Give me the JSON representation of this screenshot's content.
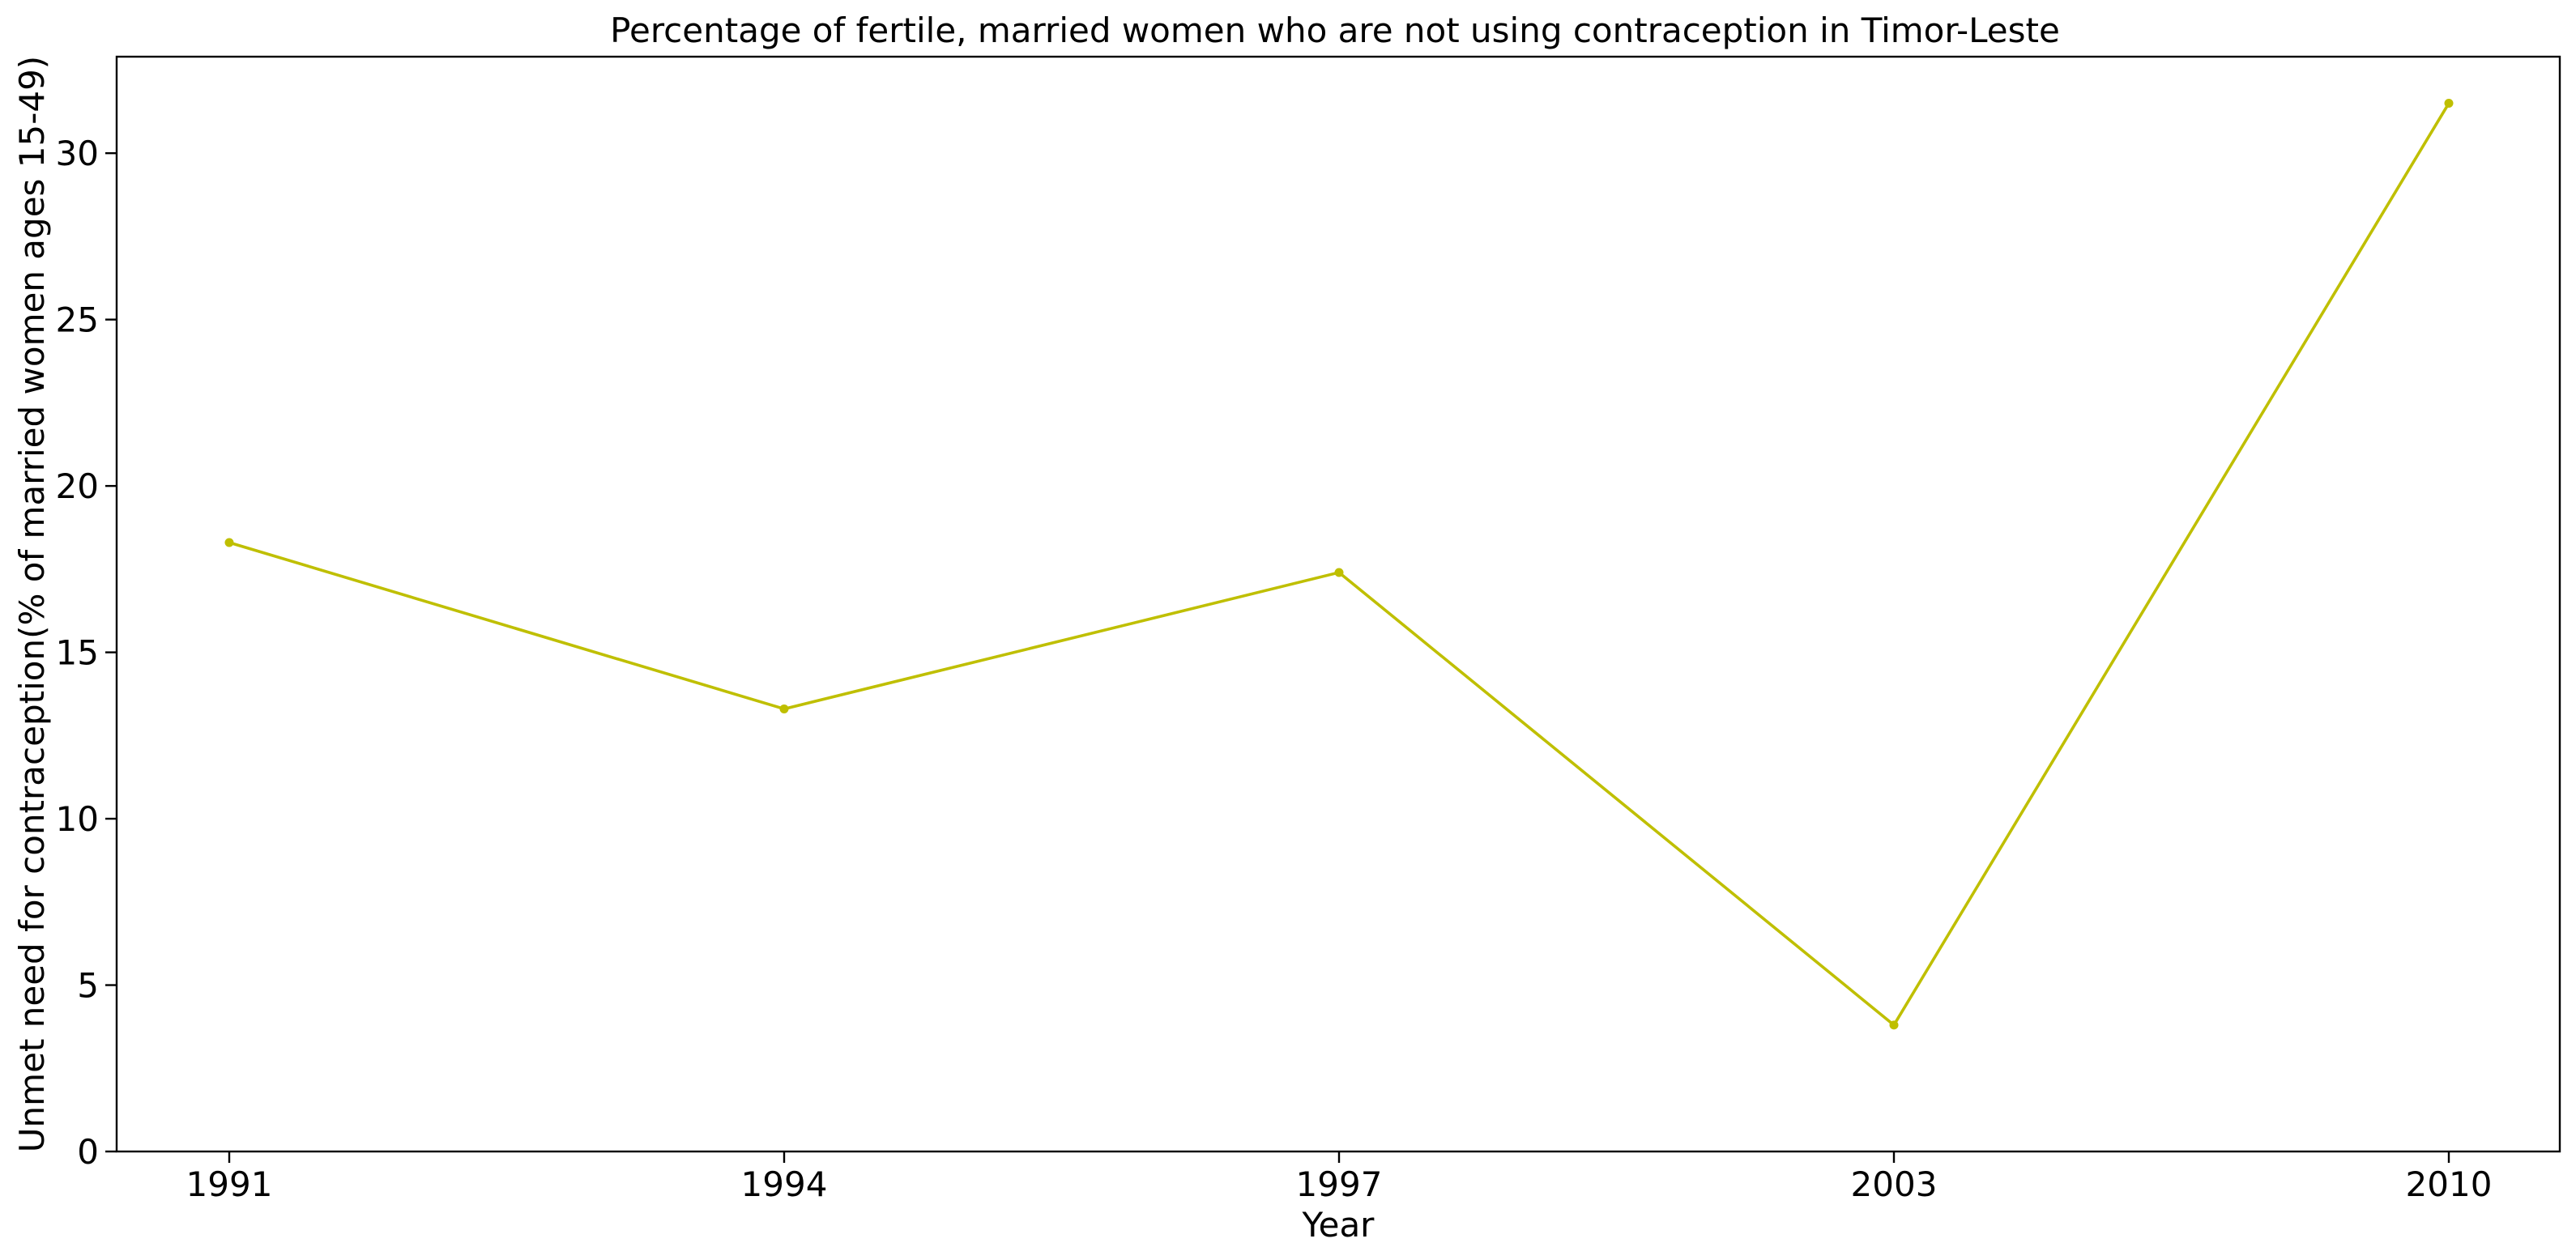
{
  "chart_data": {
    "type": "line",
    "title": "Percentage of fertile, married women who are not using contraception in Timor-Leste",
    "xlabel": "Year",
    "ylabel": "Unmet need for contraception(% of married women ages 15-49)",
    "categories": [
      "1991",
      "1994",
      "1997",
      "2003",
      "2010"
    ],
    "series": [
      {
        "values": [
          18.3,
          13.3,
          17.4,
          3.8,
          31.5
        ],
        "color": "#bfbf00"
      }
    ],
    "ylim": [
      0,
      32.9
    ],
    "yticks": [
      0,
      5,
      10,
      15,
      20,
      25,
      30
    ],
    "grid": false,
    "legend": "none"
  }
}
